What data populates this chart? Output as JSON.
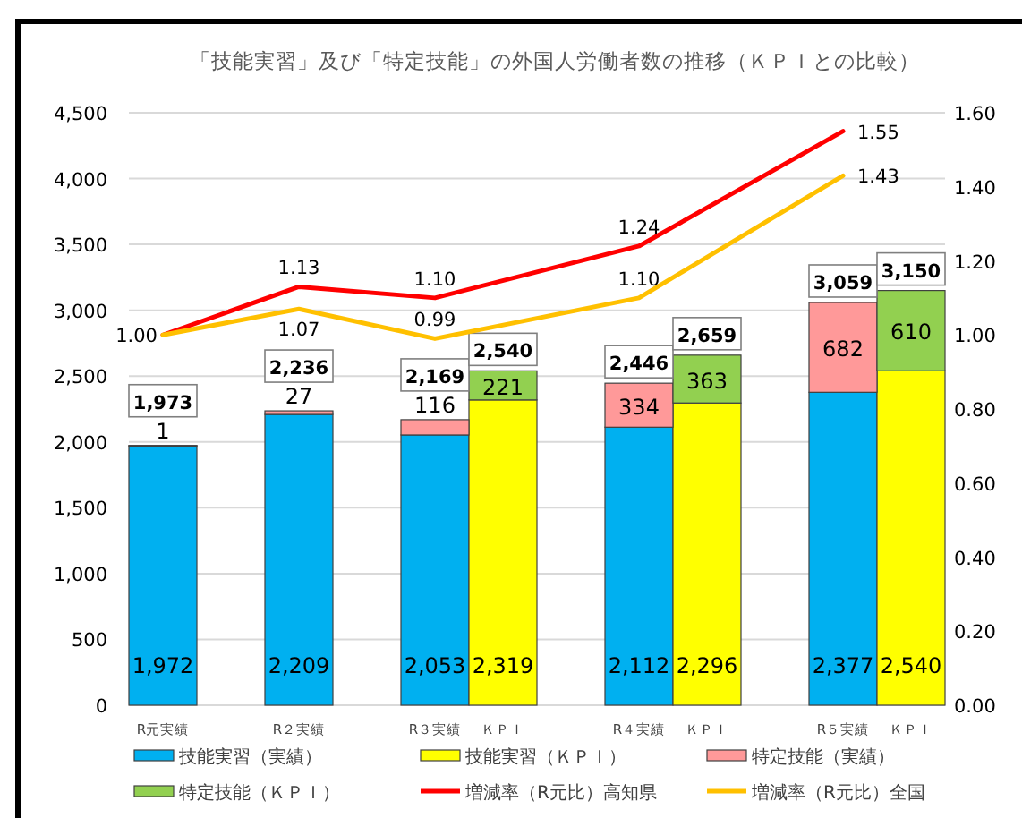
{
  "chart_data": {
    "type": "bar",
    "stacked": true,
    "title": "「技能実習」及び「特定技能」の外国人労働者数の推移（ＫＰＩとの比較）",
    "categories": [
      "R元実績",
      null,
      "R２実績",
      null,
      "R３実績",
      "ＫＰＩ",
      null,
      "R４実績",
      "ＫＰＩ",
      null,
      "R５実績",
      "ＫＰＩ"
    ],
    "series": [
      {
        "name": "技能実習（実績）",
        "color": "#00b0f0",
        "values": [
          1972,
          null,
          2209,
          null,
          2053,
          null,
          null,
          2112,
          null,
          null,
          2377,
          null
        ],
        "value_labels": [
          "1,972",
          null,
          "2,209",
          null,
          "2,053",
          null,
          null,
          "2,112",
          null,
          null,
          "2,377",
          null
        ]
      },
      {
        "name": "技能実習（ＫＰＩ）",
        "color": "#ffff00",
        "values": [
          null,
          null,
          null,
          null,
          null,
          2319,
          null,
          null,
          2296,
          null,
          null,
          2540
        ],
        "value_labels": [
          null,
          null,
          null,
          null,
          null,
          "2,319",
          null,
          null,
          "2,296",
          null,
          null,
          "2,540"
        ]
      },
      {
        "name": "特定技能（実績）",
        "color": "#ff9999",
        "values": [
          1,
          null,
          27,
          null,
          116,
          null,
          null,
          334,
          null,
          null,
          682,
          null
        ],
        "value_labels": [
          "1",
          null,
          "27",
          null,
          "116",
          null,
          null,
          "334",
          null,
          null,
          "682",
          null
        ]
      },
      {
        "name": "特定技能（ＫＰＩ）",
        "color": "#92d050",
        "values": [
          null,
          null,
          null,
          null,
          null,
          221,
          null,
          null,
          363,
          null,
          null,
          610
        ],
        "value_labels": [
          null,
          null,
          null,
          null,
          null,
          "221",
          null,
          null,
          "363",
          null,
          null,
          "610"
        ]
      },
      {
        "name": "増減率（R元比）高知県",
        "type": "line",
        "axis": "y2",
        "color": "#ff0000",
        "x": [
          "R元実績",
          "R２実績",
          "R３実績",
          "R４実績",
          "R５実績"
        ],
        "values": [
          1.0,
          1.13,
          1.1,
          1.24,
          1.55
        ],
        "value_labels": [
          "1.00",
          "1.13",
          "1.10",
          "1.24",
          "1.55"
        ]
      },
      {
        "name": "増減率（R元比）全国",
        "type": "line",
        "axis": "y2",
        "color": "#ffc000",
        "x": [
          "R元実績",
          "R２実績",
          "R３実績",
          "R４実績",
          "R５実績"
        ],
        "values": [
          1.0,
          1.07,
          0.99,
          1.1,
          1.43
        ],
        "value_labels": [
          null,
          "1.07",
          "0.99",
          "1.10",
          "1.43"
        ]
      }
    ],
    "totals": [
      "1,973",
      null,
      "2,236",
      null,
      "2,169",
      "2,540",
      null,
      "2,446",
      "2,659",
      null,
      "3,059",
      "3,150"
    ],
    "ylim": [
      0,
      4500
    ],
    "yticks": [
      {
        "value": 0,
        "label": "0"
      },
      {
        "value": 500,
        "label": "500"
      },
      {
        "value": 1000,
        "label": "1,000"
      },
      {
        "value": 1500,
        "label": "1,500"
      },
      {
        "value": 2000,
        "label": "2,000"
      },
      {
        "value": 2500,
        "label": "2,500"
      },
      {
        "value": 3000,
        "label": "3,000"
      },
      {
        "value": 3500,
        "label": "3,500"
      },
      {
        "value": 4000,
        "label": "4,000"
      },
      {
        "value": 4500,
        "label": "4,500"
      }
    ],
    "y2lim": [
      0,
      1.6
    ],
    "y2ticks": [
      {
        "value": 0,
        "label": "0.00"
      },
      {
        "value": 0.2,
        "label": "0.20"
      },
      {
        "value": 0.4,
        "label": "0.40"
      },
      {
        "value": 0.6,
        "label": "0.60"
      },
      {
        "value": 0.8,
        "label": "0.80"
      },
      {
        "value": 1.0,
        "label": "1.00"
      },
      {
        "value": 1.2,
        "label": "1.20"
      },
      {
        "value": 1.4,
        "label": "1.40"
      },
      {
        "value": 1.6,
        "label": "1.60"
      }
    ],
    "grid": "y",
    "legend": "bottom"
  }
}
